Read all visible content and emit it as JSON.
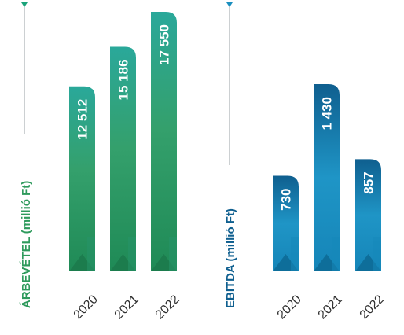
{
  "chart_data": [
    {
      "type": "bar",
      "title": "ÁRBEVÉTEL (millió Ft)",
      "categories": [
        "2020",
        "2021",
        "2022"
      ],
      "values": [
        12512,
        15186,
        17550
      ],
      "value_labels": [
        "12 512",
        "15 186",
        "17 550"
      ],
      "color": "#2e9a72"
    },
    {
      "type": "bar",
      "title": "EBITDA (millió Ft)",
      "categories": [
        "2020",
        "2021",
        "2022"
      ],
      "values": [
        730,
        1430,
        857
      ],
      "value_labels": [
        "730",
        "1 430",
        "857"
      ],
      "color": "#1a8fbf"
    }
  ]
}
